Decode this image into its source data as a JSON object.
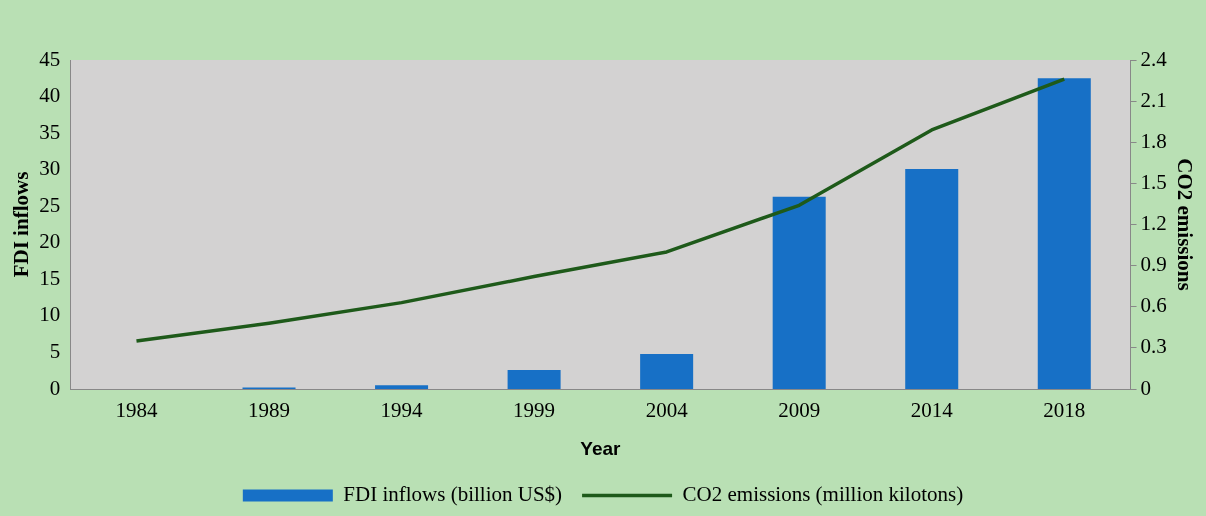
{
  "chart_data": {
    "type": "bar",
    "xlabel": "Year",
    "ylabel": "FDI inflows",
    "y2label": "CO2 emissions",
    "categories": [
      "1984",
      "1989",
      "1994",
      "1999",
      "2004",
      "2009",
      "2014",
      "2018"
    ],
    "series": [
      {
        "name": "FDI inflows (billion US$)",
        "color": "#1770c6",
        "values": [
          0,
          0.2,
          0.5,
          2.6,
          4.8,
          26.3,
          30.1,
          42.5
        ]
      },
      {
        "name": "CO2 emissions (million kilotons)",
        "type": "line",
        "axis": "y2",
        "color": "#1e5a1a",
        "marker": "none",
        "values": [
          0.35,
          0.48,
          0.63,
          0.82,
          1.0,
          1.34,
          1.89,
          2.26
        ]
      }
    ],
    "ylim": [
      0,
      45
    ],
    "yticks": [
      0,
      5,
      10,
      15,
      20,
      25,
      30,
      35,
      40,
      45
    ],
    "y2lim": [
      0,
      2.4
    ],
    "y2ticks": [
      0,
      0.3,
      0.6,
      0.9,
      1.2,
      1.5,
      1.8,
      2.1,
      2.4
    ],
    "grid": false,
    "legend": "bottom"
  }
}
